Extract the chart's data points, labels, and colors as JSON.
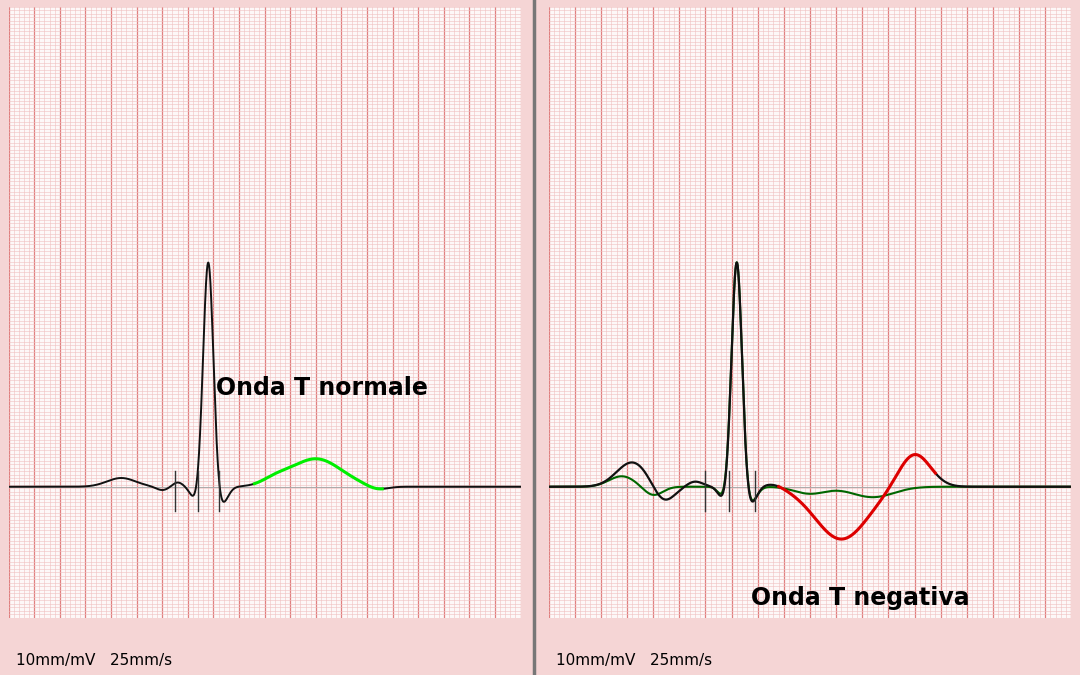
{
  "background_color": "#f5d5d5",
  "grid_major_color": "#e08080",
  "grid_minor_color": "#f0c0c0",
  "divider_color": "#777777",
  "ecg_black": "#111111",
  "ecg_green_bright": "#00ee00",
  "ecg_green_dark": "#006600",
  "ecg_red": "#dd0000",
  "label_left": "Onda T normale",
  "label_right": "Onda T negativa",
  "label_fontsize": 17,
  "footer_text": "10mm/mV   25mm/s",
  "footer_fontsize": 11,
  "panel_bg": "#fdf8f8"
}
